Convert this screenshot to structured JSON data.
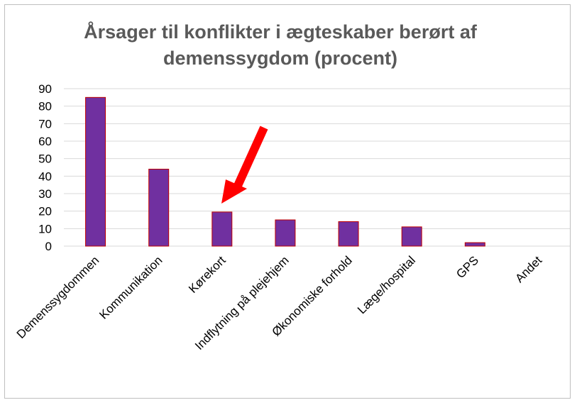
{
  "chart_data": {
    "type": "bar",
    "title_lines": [
      "Årsager til konflikter i ægteskaber berørt af",
      "demenssygdom (procent)"
    ],
    "categories": [
      "Demenssygdommen",
      "Kommunikation",
      "Kørekort",
      "Indflytning på plejehjem",
      "Økonomiske forhold",
      "Læge/hospital",
      "GPS",
      "Andet"
    ],
    "values": [
      85,
      44,
      19.5,
      15,
      14,
      11,
      2,
      0
    ],
    "y_ticks": [
      "0",
      "10",
      "20",
      "30",
      "40",
      "50",
      "60",
      "70",
      "80",
      "90"
    ],
    "ylim": [
      0,
      90
    ],
    "grid": true,
    "bar_color": "#7030a0",
    "bar_border_color": "#c00000",
    "annotation": {
      "type": "arrow",
      "points_to": "Kørekort",
      "color": "#ff0000"
    }
  }
}
